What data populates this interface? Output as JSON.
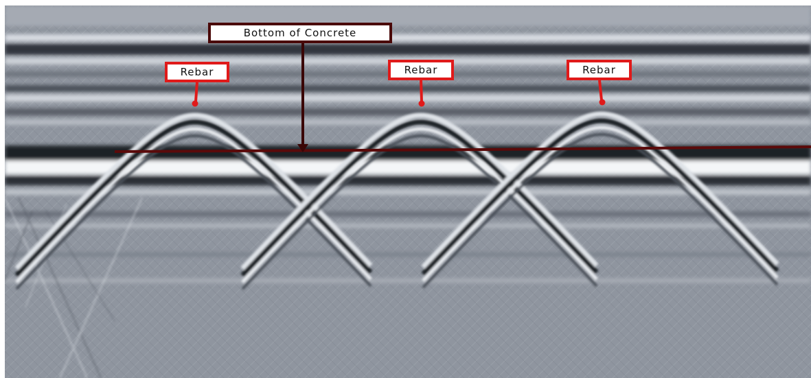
{
  "image": {
    "description_free": true,
    "palette": {
      "background": "#8e949e",
      "band_dark": "#2e3138",
      "band_light": "#e6e9ee",
      "concrete_line": "#5a0a0a",
      "rebar_marker": "#e01a1a",
      "concrete_marker": "#4a0808"
    }
  },
  "annotations": {
    "bottom_of_concrete": {
      "label": "Bottom of Concrete"
    },
    "rebars": [
      {
        "label": "Rebar"
      },
      {
        "label": "Rebar"
      },
      {
        "label": "Rebar"
      }
    ]
  }
}
